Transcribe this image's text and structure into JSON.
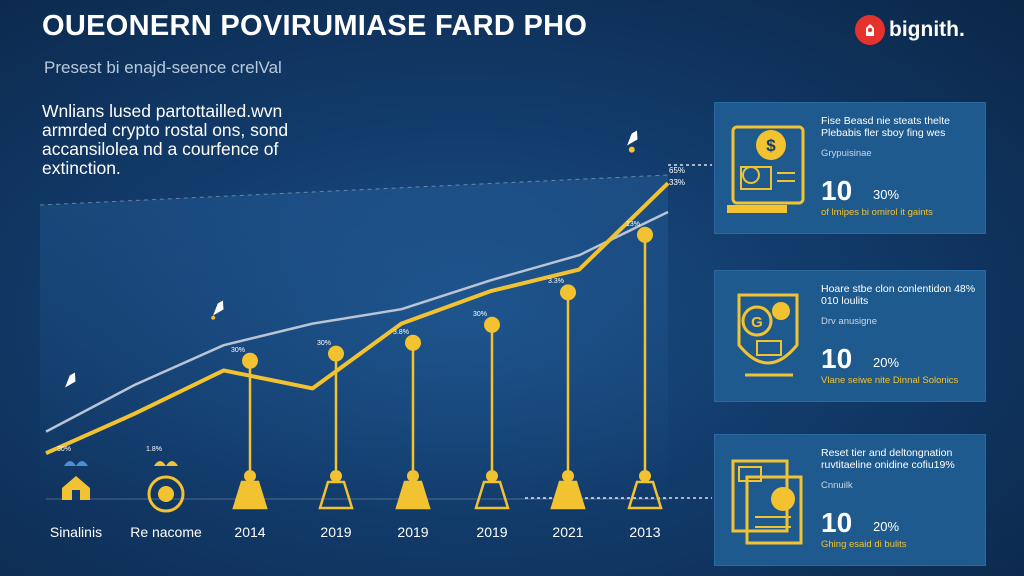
{
  "header": {
    "title": "OUEONERN POVIRUMIASE FARD PHO",
    "subtitle": "Presest bi enajd-seence crelVal",
    "brand": "bignith."
  },
  "intro": {
    "lines": [
      "Wnlians lused partottailled.wvn",
      "armrded crypto rostal ons, sond",
      "accansilolea nd a courfence of",
      "extinction."
    ]
  },
  "colors": {
    "accent": "#f2c230",
    "secondary_line": "#b9c4d4",
    "background": "#123b6b",
    "card": "#1f5a8e",
    "brand_red": "#e5322d"
  },
  "chart_data": {
    "type": "line",
    "categories": [
      "Sinalinis",
      "Re nacome",
      "2014",
      "2019",
      "2019",
      "2019",
      "2021",
      "2013"
    ],
    "series": [
      {
        "values": [
          13,
          24,
          36,
          31,
          49,
          58,
          64,
          88
        ]
      },
      {
        "values": [
          19,
          32,
          43,
          49,
          53,
          61,
          68,
          80
        ]
      }
    ],
    "bar_labels": [
      "30%",
      "1.8%",
      "30%",
      "30%",
      "3.8%",
      "30%",
      "3.3%",
      "13%"
    ],
    "stems": [
      0,
      0,
      22,
      24,
      27,
      32,
      41,
      57
    ],
    "end_labels": [
      "65%",
      "33%"
    ],
    "grid": false
  },
  "cards": [
    {
      "head": "Fise Beasd nie steats thelte Plebabis fler sboy fing wes",
      "small": "Grypuisinae",
      "big": "10",
      "pct": "30%",
      "foot": "of lmipes bi omirol it gaints",
      "icon": "coin-document-icon"
    },
    {
      "head": "Hoare stbe clon conlentidon 48% 010 loulits",
      "small": "Drv anusigne",
      "big": "10",
      "pct": "20%",
      "foot": "Vlane seiwe nite Dinnal Solonics",
      "icon": "shield-coin-icon"
    },
    {
      "head": "Reset tier and deltongnation ruvtitaeline onidine cofiu19%",
      "small": "Cnnuilk",
      "big": "10",
      "pct": "20%",
      "foot": "Ghing esaid di bulits",
      "icon": "papers-coin-icon"
    }
  ]
}
